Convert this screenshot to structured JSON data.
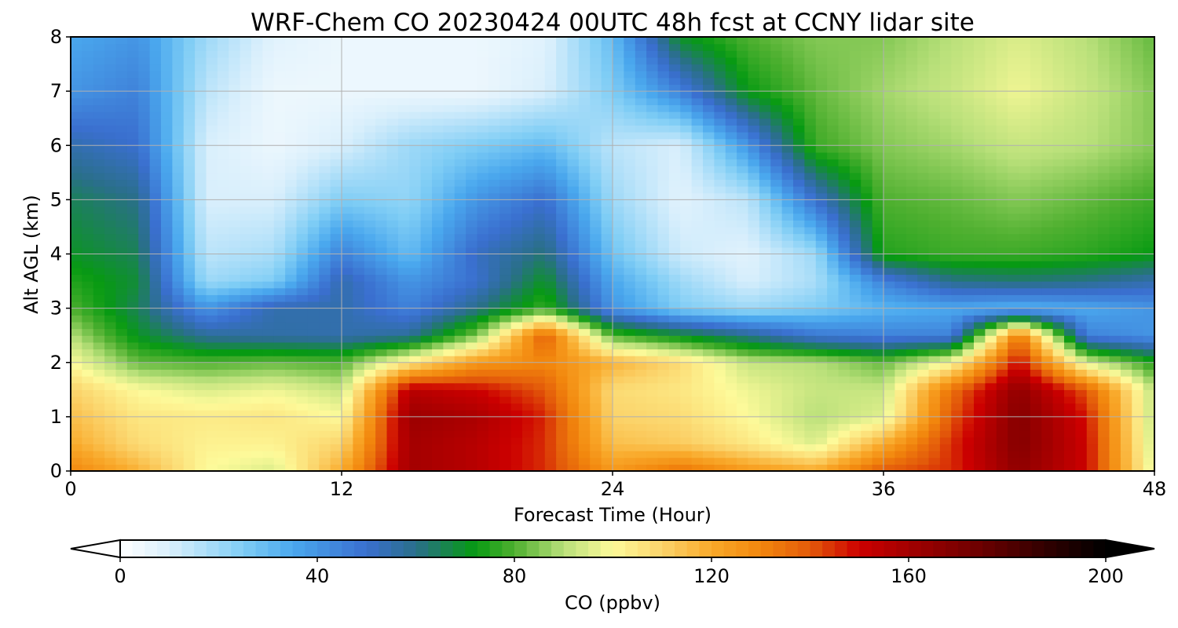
{
  "chart_data": {
    "type": "heatmap",
    "title": "WRF-Chem CO  20230424 00UTC 48h fcst at CCNY lidar site",
    "xlabel": "Forecast Time (Hour)",
    "ylabel": "Alt AGL (km)",
    "xlim": [
      0,
      48
    ],
    "ylim": [
      0,
      8
    ],
    "xticks": [
      "0",
      "12",
      "24",
      "36",
      "48"
    ],
    "yticks": [
      "0",
      "1",
      "2",
      "3",
      "4",
      "5",
      "6",
      "7",
      "8"
    ],
    "grid": true,
    "colorbar": {
      "label": "CO  (ppbv)",
      "ticks": [
        "0",
        "40",
        "80",
        "120",
        "160",
        "200"
      ],
      "range": [
        0,
        200
      ],
      "extend": "both",
      "colors": [
        {
          "v": 0,
          "c": "#ffffff"
        },
        {
          "v": 10,
          "c": "#d9effc"
        },
        {
          "v": 25,
          "c": "#7fcdf5"
        },
        {
          "v": 35,
          "c": "#4aa8ee"
        },
        {
          "v": 50,
          "c": "#3a6fcf"
        },
        {
          "v": 60,
          "c": "#2a6f8a"
        },
        {
          "v": 72,
          "c": "#079a12"
        },
        {
          "v": 80,
          "c": "#4fb030"
        },
        {
          "v": 90,
          "c": "#b9e07a"
        },
        {
          "v": 100,
          "c": "#fdfa9a"
        },
        {
          "v": 110,
          "c": "#fbd36a"
        },
        {
          "v": 120,
          "c": "#f9a92a"
        },
        {
          "v": 130,
          "c": "#f2870d"
        },
        {
          "v": 140,
          "c": "#e35a0a"
        },
        {
          "v": 150,
          "c": "#cc0000"
        },
        {
          "v": 160,
          "c": "#a30000"
        },
        {
          "v": 175,
          "c": "#6a0000"
        },
        {
          "v": 188,
          "c": "#300000"
        },
        {
          "v": 200,
          "c": "#000000"
        }
      ]
    },
    "x_hours": [
      0,
      3,
      6,
      9,
      12,
      15,
      18,
      21,
      24,
      27,
      30,
      33,
      36,
      39,
      42,
      45,
      48
    ],
    "z_km": [
      0,
      0.5,
      1,
      1.5,
      2,
      2.5,
      3,
      3.5,
      4,
      5,
      6,
      7,
      8
    ],
    "co_ppbv": [
      [
        130,
        118,
        100,
        95,
        120,
        160,
        155,
        145,
        125,
        135,
        125,
        120,
        140,
        145,
        165,
        150,
        95
      ],
      [
        120,
        108,
        102,
        102,
        110,
        160,
        155,
        145,
        115,
        112,
        105,
        95,
        120,
        145,
        168,
        150,
        92
      ],
      [
        115,
        105,
        104,
        105,
        100,
        162,
        158,
        146,
        110,
        108,
        100,
        90,
        96,
        140,
        168,
        148,
        90
      ],
      [
        110,
        100,
        95,
        98,
        92,
        155,
        150,
        140,
        108,
        105,
        98,
        92,
        92,
        135,
        165,
        140,
        90
      ],
      [
        100,
        82,
        80,
        82,
        80,
        105,
        125,
        130,
        118,
        108,
        92,
        90,
        82,
        100,
        150,
        95,
        75
      ],
      [
        90,
        70,
        58,
        56,
        55,
        58,
        85,
        140,
        80,
        70,
        60,
        48,
        45,
        45,
        135,
        45,
        40
      ],
      [
        80,
        65,
        40,
        55,
        55,
        45,
        60,
        78,
        40,
        25,
        20,
        25,
        32,
        35,
        32,
        35,
        40
      ],
      [
        75,
        68,
        20,
        25,
        55,
        40,
        50,
        70,
        35,
        20,
        10,
        18,
        45,
        60,
        62,
        60,
        55
      ],
      [
        70,
        65,
        15,
        18,
        45,
        30,
        52,
        62,
        28,
        12,
        8,
        20,
        75,
        78,
        78,
        76,
        72
      ],
      [
        65,
        60,
        10,
        10,
        25,
        22,
        40,
        50,
        20,
        8,
        15,
        50,
        80,
        82,
        85,
        82,
        78
      ],
      [
        55,
        50,
        10,
        5,
        10,
        20,
        25,
        30,
        15,
        10,
        40,
        78,
        85,
        88,
        92,
        90,
        85
      ],
      [
        40,
        45,
        15,
        5,
        5,
        5,
        5,
        10,
        25,
        45,
        72,
        82,
        88,
        92,
        98,
        92,
        85
      ],
      [
        35,
        40,
        20,
        8,
        5,
        5,
        5,
        8,
        30,
        70,
        80,
        85,
        85,
        90,
        95,
        90,
        82
      ]
    ]
  }
}
